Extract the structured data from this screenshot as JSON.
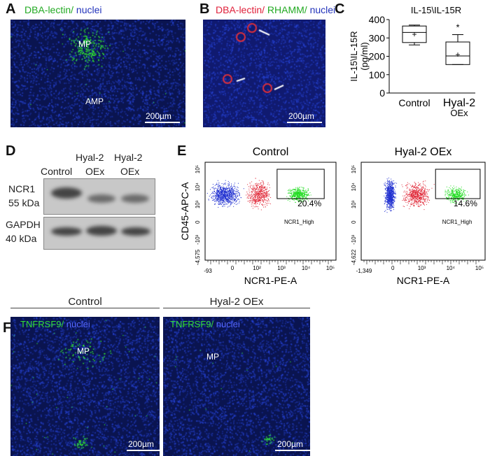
{
  "panels": {
    "A": {
      "letter": "A",
      "stain_green": "DBA-lectin/",
      "stain_blue": " nuclei",
      "labels": [
        "MP",
        "AMP"
      ],
      "scale": "200µm"
    },
    "B": {
      "letter": "B",
      "stain_red": "DBA-lectin/",
      "stain_green": " RHAMM/",
      "stain_blue": " nuclei",
      "scale": "200µm"
    },
    "C": {
      "letter": "C"
    },
    "D": {
      "letter": "D",
      "lanes_top": [
        "",
        "Hyal-2",
        "Hyal-2"
      ],
      "lanes_bottom": [
        "Control",
        "OEx",
        "OEx"
      ],
      "rows": [
        {
          "name": "NCR1",
          "size": "55 kDa"
        },
        {
          "name": "GAPDH",
          "size": "40 kDa"
        }
      ]
    },
    "E": {
      "letter": "E"
    },
    "F": {
      "letter": "F",
      "groups": [
        "Control",
        "Hyal-2 OEx"
      ],
      "stain_green": "TNFRSF9/",
      "stain_blue": " nuclei",
      "label": "MP",
      "scale": "200µm"
    }
  },
  "colors": {
    "green": "#22cc22",
    "red": "#e0203a",
    "blue": "#2030c0"
  },
  "chart_data": [
    {
      "type": "box",
      "title": "IL-15\\IL-15R",
      "ylabel": "IL-15\\IL-15R\n(pg/ml)",
      "ylim": [
        0,
        400
      ],
      "yticks": [
        "0",
        "100",
        "200",
        "300",
        "400"
      ],
      "categories": [
        "Control",
        "Hyal-2 OEx"
      ],
      "boxes": [
        {
          "min": 262,
          "q1": 275,
          "median": 330,
          "q3": 365,
          "max": 370,
          "mean": 320
        },
        {
          "min": 155,
          "q1": 155,
          "median": 202,
          "q3": 278,
          "max": 318,
          "mean": 210
        }
      ],
      "annotations": [
        "",
        "*"
      ]
    },
    {
      "type": "scatter",
      "title": "Control",
      "xlabel": "NCR1-PE-A",
      "ylabel": "CD45-APC-A",
      "xticks": [
        "-93",
        "0",
        "10²",
        "10³",
        "10⁴",
        "10⁵"
      ],
      "yticks": [
        "-4,575",
        "-10³",
        "0",
        "10³",
        "10⁴",
        "10⁵"
      ],
      "gate": "NCR1_High",
      "gate_percent": "20.4%"
    },
    {
      "type": "scatter",
      "title": "Hyal-2 OEx",
      "xlabel": "NCR1-PE-A",
      "ylabel": "",
      "xticks": [
        "-1,349",
        "0",
        "10³",
        "10⁴",
        "10⁵"
      ],
      "yticks": [
        "-4,622",
        "-10³",
        "0",
        "10³",
        "10⁴",
        "10⁵"
      ],
      "gate": "NCR1_High",
      "gate_percent": "14.6%"
    }
  ]
}
